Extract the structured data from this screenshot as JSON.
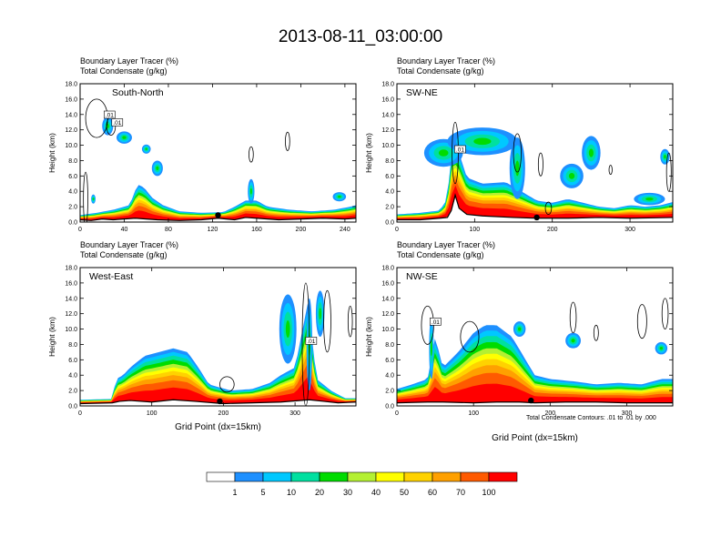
{
  "title": "2013-08-11_03:00:00",
  "chart_data": [
    {
      "type": "heatmap",
      "region": "South-North",
      "overlay": "contour",
      "title_lines": [
        "Boundary Layer Tracer   (%)",
        "Total Condensate   (g/kg)"
      ],
      "ylabel": "Height (km)",
      "xlabel": "",
      "xlim": [
        0,
        250
      ],
      "ylim": [
        0,
        18
      ],
      "xticks": [
        "0",
        "40",
        "80",
        "120",
        "160",
        "200",
        "240"
      ],
      "xtick_values": [
        0,
        40,
        80,
        120,
        160,
        200,
        240
      ],
      "yticks": [
        "0.0",
        "2.0",
        "4.0",
        "6.0",
        "8.0",
        "10.0",
        "12.0",
        "14.0",
        "16.0",
        "18.0"
      ],
      "contour_labels": [
        ".01",
        ".01"
      ],
      "surface_profile": [
        [
          0,
          0.3
        ],
        [
          10,
          0.2
        ],
        [
          20,
          0.4
        ],
        [
          30,
          0.3
        ],
        [
          50,
          0.5
        ],
        [
          70,
          0.3
        ],
        [
          90,
          0.2
        ],
        [
          110,
          0.3
        ],
        [
          125,
          0.5
        ],
        [
          140,
          0.3
        ],
        [
          150,
          0.6
        ],
        [
          160,
          0.5
        ],
        [
          180,
          0.3
        ],
        [
          200,
          0.4
        ],
        [
          220,
          0.5
        ],
        [
          240,
          0.4
        ],
        [
          250,
          0.5
        ]
      ],
      "tracer_top": [
        [
          0,
          0.9
        ],
        [
          15,
          1.2
        ],
        [
          30,
          1.6
        ],
        [
          45,
          2.2
        ],
        [
          52,
          4.9
        ],
        [
          58,
          4.5
        ],
        [
          65,
          3.2
        ],
        [
          75,
          2.2
        ],
        [
          90,
          1.4
        ],
        [
          110,
          1.2
        ],
        [
          130,
          1.3
        ],
        [
          140,
          2.0
        ],
        [
          150,
          2.8
        ],
        [
          160,
          2.8
        ],
        [
          170,
          2.0
        ],
        [
          190,
          1.6
        ],
        [
          210,
          1.4
        ],
        [
          230,
          1.6
        ],
        [
          245,
          2.0
        ],
        [
          250,
          2.2
        ]
      ],
      "markers": [
        [
          125,
          0.9
        ]
      ],
      "cloud_blobs": [
        [
          25,
          12.5,
          5,
          1.2
        ],
        [
          40,
          11.0,
          7,
          0.8
        ],
        [
          60,
          9.5,
          4,
          0.6
        ],
        [
          70,
          7.0,
          5,
          1.0
        ],
        [
          155,
          4.0,
          3,
          1.6
        ],
        [
          12,
          3.0,
          2,
          0.6
        ],
        [
          235,
          3.3,
          6,
          0.6
        ]
      ],
      "outlines": [
        [
          15,
          13.5,
          10,
          2.5
        ],
        [
          28,
          12.5,
          4,
          1.2
        ],
        [
          155,
          8.8,
          2,
          1.0
        ],
        [
          188,
          10.5,
          2,
          1.2
        ],
        [
          5,
          3.0,
          2,
          3.5
        ]
      ]
    },
    {
      "type": "heatmap",
      "region": "SW-NE",
      "overlay": "contour",
      "title_lines": [
        "Boundary Layer Tracer   (%)",
        "Total Condensate   (g/kg)"
      ],
      "ylabel": "Height (km)",
      "xlabel": "",
      "xlim": [
        0,
        355
      ],
      "ylim": [
        0,
        18
      ],
      "xticks": [
        "0",
        "100",
        "200",
        "300"
      ],
      "xtick_values": [
        0,
        100,
        200,
        300
      ],
      "yticks": [
        "0.0",
        "2.0",
        "4.0",
        "6.0",
        "8.0",
        "10.0",
        "12.0",
        "14.0",
        "16.0",
        "18.0"
      ],
      "contour_labels": [
        ".01"
      ],
      "surface_profile": [
        [
          0,
          0.3
        ],
        [
          30,
          0.3
        ],
        [
          55,
          0.5
        ],
        [
          65,
          0.6
        ],
        [
          70,
          1.5
        ],
        [
          75,
          3.5
        ],
        [
          80,
          1.8
        ],
        [
          90,
          1.0
        ],
        [
          110,
          0.8
        ],
        [
          150,
          0.6
        ],
        [
          180,
          0.5
        ],
        [
          220,
          0.5
        ],
        [
          260,
          0.6
        ],
        [
          300,
          0.5
        ],
        [
          355,
          0.6
        ]
      ],
      "tracer_top": [
        [
          0,
          1.0
        ],
        [
          30,
          1.2
        ],
        [
          55,
          1.5
        ],
        [
          65,
          3.0
        ],
        [
          70,
          9.5
        ],
        [
          80,
          9.0
        ],
        [
          90,
          5.8
        ],
        [
          110,
          5.0
        ],
        [
          140,
          5.2
        ],
        [
          160,
          4.0
        ],
        [
          180,
          2.8
        ],
        [
          200,
          2.5
        ],
        [
          220,
          3.0
        ],
        [
          240,
          2.5
        ],
        [
          260,
          2.0
        ],
        [
          280,
          1.8
        ],
        [
          300,
          2.2
        ],
        [
          320,
          2.0
        ],
        [
          340,
          2.2
        ],
        [
          355,
          2.6
        ]
      ],
      "markers": [
        [
          180,
          0.6
        ]
      ],
      "cloud_blobs": [
        [
          60,
          9.0,
          25,
          1.8
        ],
        [
          110,
          10.5,
          45,
          1.8
        ],
        [
          155,
          7.0,
          10,
          4.0
        ],
        [
          250,
          9.0,
          12,
          2.2
        ],
        [
          225,
          6.0,
          15,
          1.6
        ],
        [
          345,
          8.5,
          6,
          1.0
        ],
        [
          325,
          3.0,
          20,
          0.8
        ]
      ],
      "outlines": [
        [
          75,
          9.0,
          4,
          4.0
        ],
        [
          155,
          9.0,
          5,
          2.5
        ],
        [
          185,
          7.5,
          3,
          1.5
        ],
        [
          275,
          6.8,
          2,
          0.6
        ],
        [
          350,
          6.5,
          3,
          2.5
        ],
        [
          195,
          1.8,
          4,
          0.8
        ]
      ]
    },
    {
      "type": "heatmap",
      "region": "West-East",
      "overlay": "contour",
      "title_lines": [
        "Boundary Layer Tracer   (%)",
        "Total Condensate   (g/kg)"
      ],
      "ylabel": "Height (km)",
      "xlabel": "Grid Point (dx=15km)",
      "xlim": [
        0,
        385
      ],
      "ylim": [
        0,
        18
      ],
      "xticks": [
        "0",
        "100",
        "200",
        "300"
      ],
      "xtick_values": [
        0,
        100,
        200,
        300
      ],
      "yticks": [
        "0.0",
        "2.0",
        "4.0",
        "6.0",
        "8.0",
        "10.0",
        "12.0",
        "14.0",
        "16.0",
        "18.0"
      ],
      "contour_labels": [
        ".01"
      ],
      "surface_profile": [
        [
          0,
          0.3
        ],
        [
          45,
          0.4
        ],
        [
          55,
          0.6
        ],
        [
          70,
          0.7
        ],
        [
          100,
          0.5
        ],
        [
          130,
          0.8
        ],
        [
          160,
          0.6
        ],
        [
          200,
          0.3
        ],
        [
          240,
          0.4
        ],
        [
          280,
          0.5
        ],
        [
          320,
          0.8
        ],
        [
          340,
          0.6
        ],
        [
          360,
          0.4
        ],
        [
          385,
          0.5
        ]
      ],
      "tracer_top": [
        [
          0,
          0.8
        ],
        [
          45,
          0.9
        ],
        [
          50,
          3.5
        ],
        [
          60,
          4.0
        ],
        [
          70,
          5.0
        ],
        [
          90,
          6.5
        ],
        [
          110,
          7.0
        ],
        [
          130,
          7.5
        ],
        [
          150,
          7.0
        ],
        [
          165,
          5.0
        ],
        [
          180,
          2.8
        ],
        [
          210,
          2.0
        ],
        [
          240,
          2.2
        ],
        [
          265,
          3.0
        ],
        [
          280,
          4.0
        ],
        [
          300,
          5.0
        ],
        [
          318,
          13.5
        ],
        [
          330,
          3.5
        ],
        [
          350,
          2.0
        ],
        [
          370,
          1.0
        ],
        [
          385,
          1.0
        ]
      ],
      "markers": [
        [
          195,
          0.6
        ]
      ],
      "cloud_blobs": [
        [
          290,
          10.0,
          12,
          4.5
        ],
        [
          320,
          8.0,
          4,
          6.0
        ],
        [
          335,
          12.0,
          6,
          3.0
        ]
      ],
      "outlines": [
        [
          315,
          8.0,
          5,
          8.0
        ],
        [
          345,
          11.0,
          5,
          4.0
        ],
        [
          377,
          11.0,
          3,
          2.0
        ],
        [
          205,
          2.8,
          10,
          1.0
        ]
      ]
    },
    {
      "type": "heatmap",
      "region": "NW-SE",
      "overlay": "contour",
      "title_lines": [
        "Boundary Layer Tracer   (%)",
        "Total Condensate   (g/kg)"
      ],
      "ylabel": "Height (km)",
      "xlabel": "Grid Point (dx=15km)",
      "footnote": "Total Condensate Contours: .01 to .01 by .000",
      "xlim": [
        0,
        360
      ],
      "ylim": [
        0,
        18
      ],
      "xticks": [
        "0",
        "100",
        "200",
        "300"
      ],
      "xtick_values": [
        0,
        100,
        200,
        300
      ],
      "yticks": [
        "0.0",
        "2.0",
        "4.0",
        "6.0",
        "8.0",
        "10.0",
        "12.0",
        "14.0",
        "16.0",
        "18.0"
      ],
      "contour_labels": [
        ".01"
      ],
      "surface_profile": [
        [
          0,
          0.4
        ],
        [
          40,
          0.5
        ],
        [
          60,
          0.5
        ],
        [
          100,
          0.4
        ],
        [
          130,
          0.5
        ],
        [
          160,
          0.5
        ],
        [
          180,
          0.4
        ],
        [
          220,
          0.5
        ],
        [
          260,
          0.5
        ],
        [
          300,
          0.4
        ],
        [
          360,
          0.4
        ]
      ],
      "tracer_top": [
        [
          0,
          2.2
        ],
        [
          20,
          2.8
        ],
        [
          40,
          3.5
        ],
        [
          50,
          9.0
        ],
        [
          60,
          5.0
        ],
        [
          80,
          7.0
        ],
        [
          100,
          9.5
        ],
        [
          115,
          10.5
        ],
        [
          130,
          10.5
        ],
        [
          150,
          9.0
        ],
        [
          165,
          6.5
        ],
        [
          180,
          4.0
        ],
        [
          200,
          3.5
        ],
        [
          230,
          3.2
        ],
        [
          260,
          2.8
        ],
        [
          290,
          3.0
        ],
        [
          320,
          2.8
        ],
        [
          345,
          3.5
        ],
        [
          360,
          3.5
        ]
      ],
      "markers": [
        [
          175,
          0.7
        ]
      ],
      "cloud_blobs": [
        [
          45,
          7.5,
          3,
          4.0
        ],
        [
          160,
          10.0,
          8,
          1.0
        ],
        [
          230,
          8.5,
          10,
          1.0
        ],
        [
          345,
          7.5,
          8,
          0.8
        ]
      ],
      "outlines": [
        [
          40,
          10.5,
          8,
          2.5
        ],
        [
          95,
          9.0,
          12,
          2.0
        ],
        [
          230,
          11.5,
          4,
          2.0
        ],
        [
          320,
          11.0,
          6,
          2.2
        ],
        [
          350,
          12.0,
          4,
          2.0
        ],
        [
          260,
          9.5,
          3,
          1.0
        ]
      ]
    }
  ],
  "colorbar": {
    "labels": [
      "1",
      "5",
      "10",
      "20",
      "30",
      "40",
      "50",
      "60",
      "70",
      "100"
    ],
    "colors": [
      "#ffffff",
      "#1e90ff",
      "#00c8ff",
      "#00e0a0",
      "#00dc00",
      "#b4f032",
      "#ffff00",
      "#ffd200",
      "#ffa000",
      "#ff5a00",
      "#ff0000"
    ]
  }
}
